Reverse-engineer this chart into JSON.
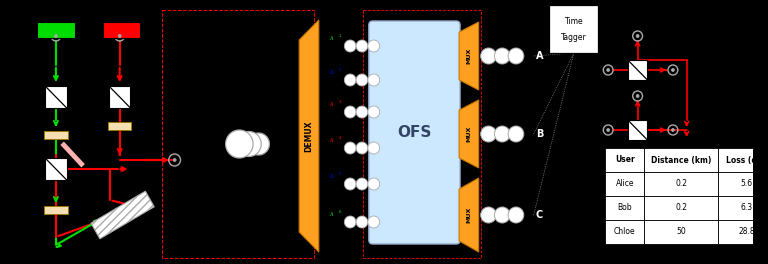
{
  "bg_color": "#000000",
  "table_headers": [
    "User",
    "Distance (km)",
    "Loss (dB)"
  ],
  "table_rows": [
    [
      "Alice",
      "0.2",
      "5.6"
    ],
    [
      "Bob",
      "0.2",
      "6.3"
    ],
    [
      "Chloe",
      "50",
      "28.8"
    ]
  ],
  "green_color": "#00dd00",
  "red_color": "#ff0000",
  "orange_color": "#FFA020",
  "ofs_color": "#cce8ff",
  "white": "#ffffff",
  "gray": "#aaaaaa",
  "wheat": "#f5deb3"
}
